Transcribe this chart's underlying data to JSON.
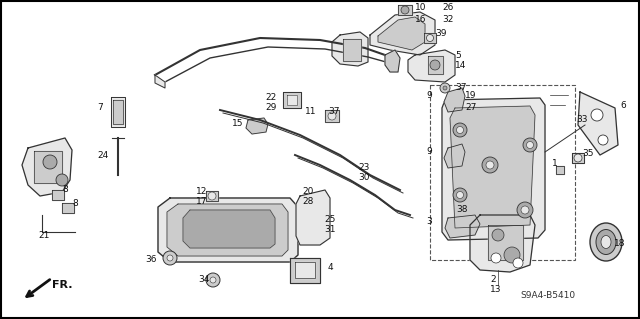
{
  "background_color": "#ffffff",
  "border_color": "#000000",
  "diagram_code": "S9A4-B5410",
  "fr_label": "FR.",
  "figsize": [
    6.4,
    3.19
  ],
  "dpi": 100,
  "label_color": "#111111",
  "line_color": "#333333",
  "part_color_light": "#e8e8e8",
  "part_color_mid": "#cccccc",
  "part_color_dark": "#aaaaaa",
  "font_size_labels": 6.5,
  "font_size_ref": 6.5,
  "font_size_fr": 8
}
